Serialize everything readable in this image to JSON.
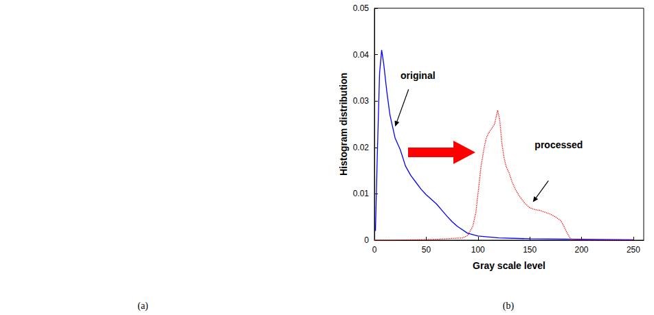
{
  "chart_data": {
    "type": "line",
    "caption": "(b)",
    "x_label": "Gray scale level",
    "y_label": "Histogram distribution",
    "xlim": [
      0,
      260
    ],
    "xticks": [
      0,
      50,
      100,
      150,
      200,
      250
    ],
    "ylim": [
      0,
      0.05
    ],
    "yticks": [
      0,
      0.01,
      0.02,
      0.03,
      0.04,
      0.05
    ],
    "grid": false,
    "series": [
      {
        "color": "#0000ff",
        "line_style": "solid",
        "x": [
          1,
          3,
          5,
          7,
          9,
          12,
          15,
          20,
          25,
          30,
          35,
          40,
          45,
          50,
          55,
          60,
          65,
          70,
          75,
          80,
          90,
          100,
          120,
          150,
          200,
          250
        ],
        "values": [
          0.002,
          0.02,
          0.036,
          0.041,
          0.038,
          0.032,
          0.027,
          0.022,
          0.0195,
          0.016,
          0.014,
          0.0125,
          0.011,
          0.0098,
          0.0088,
          0.0078,
          0.0065,
          0.0052,
          0.004,
          0.003,
          0.0015,
          0.0009,
          0.0005,
          0.0003,
          0.0002,
          0.0001
        ]
      },
      {
        "color": "#ff0000",
        "line_style": "dotted",
        "x": [
          0,
          20,
          60,
          85,
          90,
          95,
          98,
          100,
          103,
          106,
          108,
          110,
          113,
          116,
          119,
          121,
          123,
          125,
          127,
          130,
          133,
          136,
          140,
          145,
          150,
          155,
          160,
          165,
          170,
          175,
          180,
          183,
          185,
          188,
          190,
          200,
          250
        ],
        "values": [
          0,
          0,
          0.0002,
          0.0005,
          0.001,
          0.003,
          0.006,
          0.01,
          0.016,
          0.02,
          0.022,
          0.023,
          0.024,
          0.025,
          0.028,
          0.026,
          0.021,
          0.018,
          0.016,
          0.0145,
          0.0125,
          0.011,
          0.0095,
          0.008,
          0.007,
          0.0066,
          0.0064,
          0.006,
          0.0056,
          0.005,
          0.0042,
          0.003,
          0.002,
          0.0008,
          0.0002,
          0,
          0
        ]
      }
    ],
    "annotations": [
      {
        "text": "original",
        "x": 42,
        "y": 0.0355,
        "arrow_from": [
          33,
          0.0325
        ],
        "arrow_to": [
          20,
          0.0245
        ]
      },
      {
        "text": "processed",
        "x": 178,
        "y": 0.0205,
        "arrow_from": [
          168,
          0.0128
        ],
        "arrow_to": [
          153,
          0.0082
        ]
      }
    ]
  },
  "image_panel": {
    "caption": "(a)"
  }
}
